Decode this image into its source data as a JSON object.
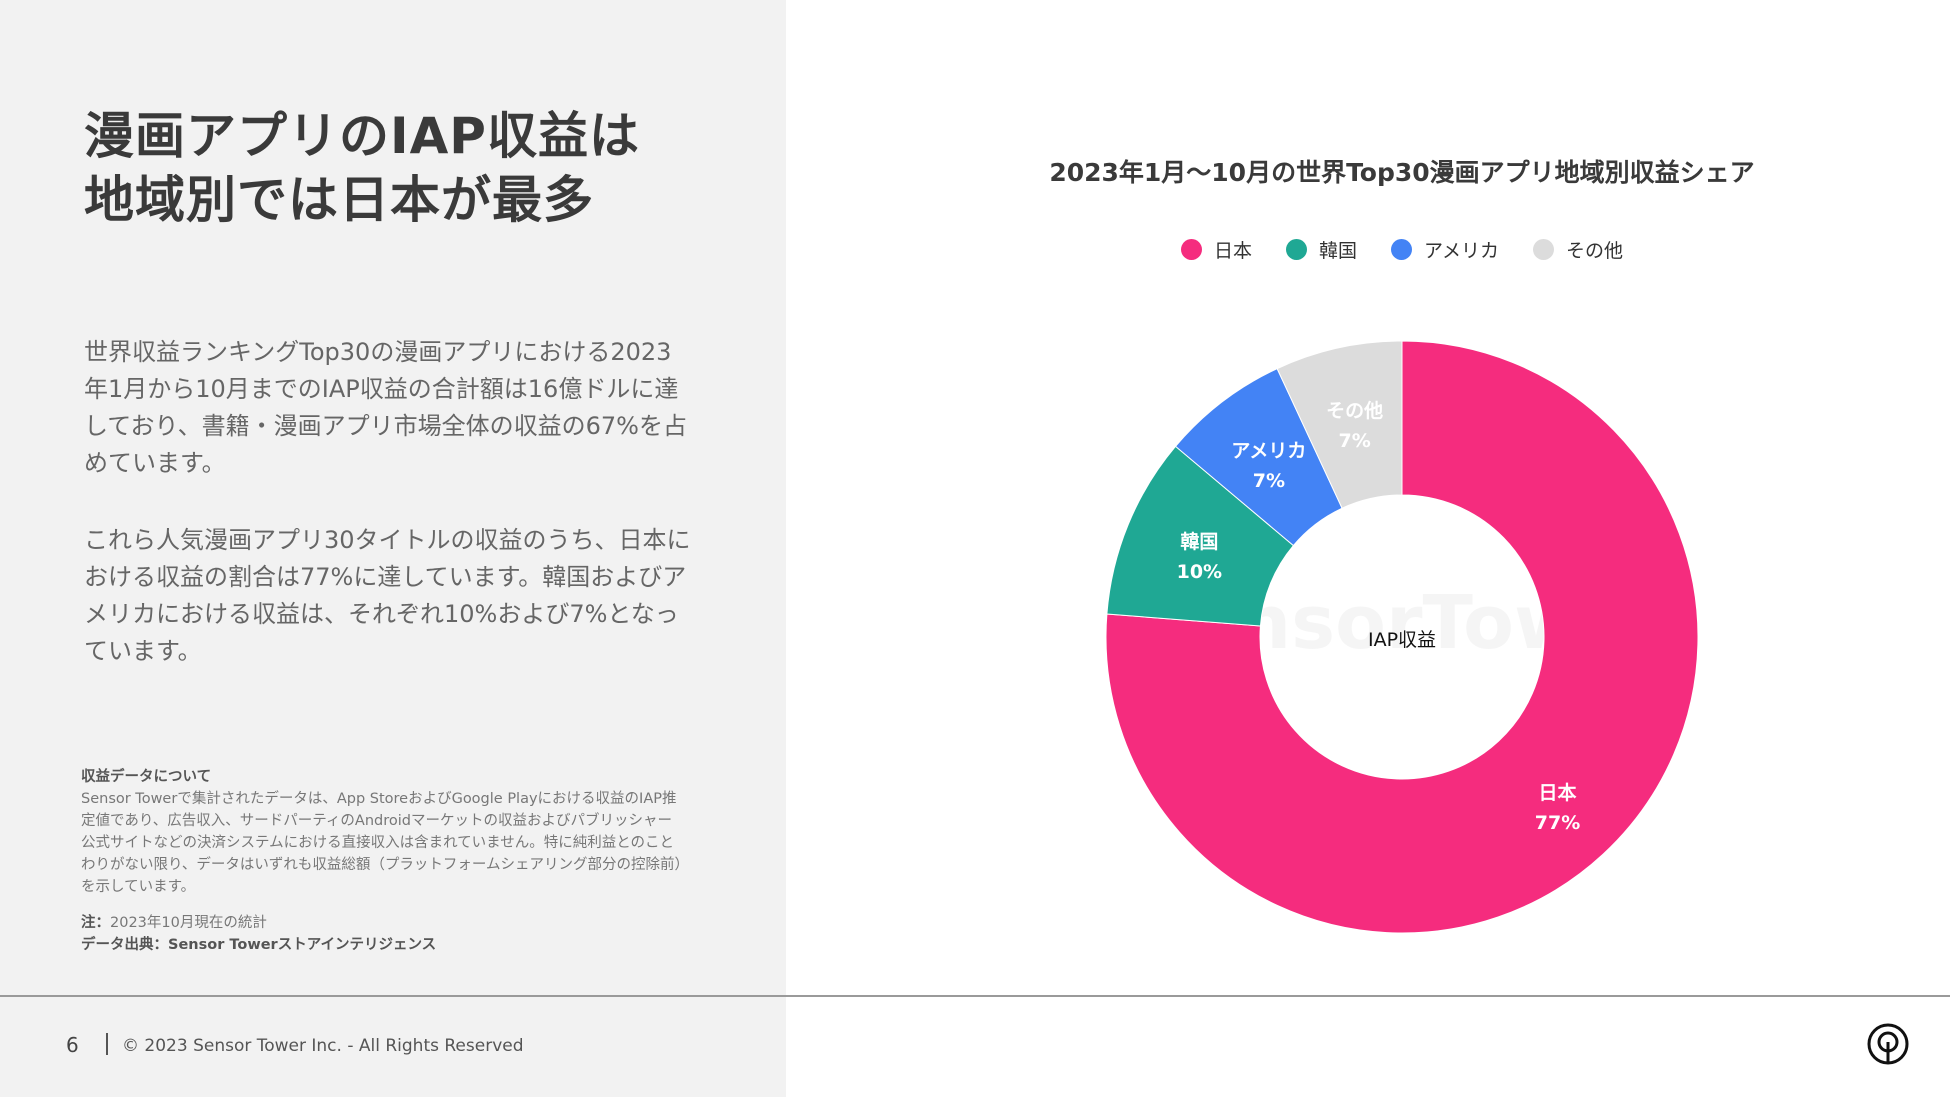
{
  "left": {
    "title_lines": [
      "漫画アプリのIAP収益は",
      "地域別では日本が最多"
    ],
    "paragraph1": "世界収益ランキングTop30の漫画アプリにおける2023年1月から10月までのIAP収益の合計額は16億ドルに達しており、書籍・漫画アプリ市場全体の収益の67%を占めています。",
    "paragraph2": "これら人気漫画アプリ30タイトルの収益のうち、日本における収益の割合は77%に達しています。韓国およびアメリカにおける収益は、それぞれ10%および7%となっています。",
    "notes": {
      "heading": "収益データについて",
      "body": "Sensor Towerで集計されたデータは、App StoreおよびGoogle Playにおける収益のIAP推定値であり、広告収入、サードパーティのAndroidマーケットの収益およびパブリッシャー公式サイトなどの決済システムにおける直接収入は含まれていません。特に純利益とのことわりがない限り、データはいずれも収益総額（プラットフォームシェアリング部分の控除前）を示しています。",
      "note_label": "注：",
      "note_text": "2023年10月現在の統計",
      "source": "データ出典：Sensor Towerストアインテリジェンス"
    }
  },
  "footer": {
    "page_number": "6",
    "copyright": "© 2023 Sensor Tower Inc. - All Rights Reserved",
    "logo_icon": "sensor-tower-logo-icon"
  },
  "chart_data": {
    "type": "pie",
    "donut": true,
    "title": "2023年1月～10月の世界Top30漫画アプリ地域別収益シェア",
    "center_label": "IAP収益",
    "legend_position": "top",
    "categories": [
      "日本",
      "韓国",
      "アメリカ",
      "その他"
    ],
    "values": [
      77,
      10,
      7,
      7
    ],
    "labels": [
      "77%",
      "10%",
      "7%",
      "7%"
    ],
    "colors": [
      "#f52c7e",
      "#1fa894",
      "#4383f5",
      "#dcdcdc"
    ],
    "watermark": "SensorTower"
  }
}
